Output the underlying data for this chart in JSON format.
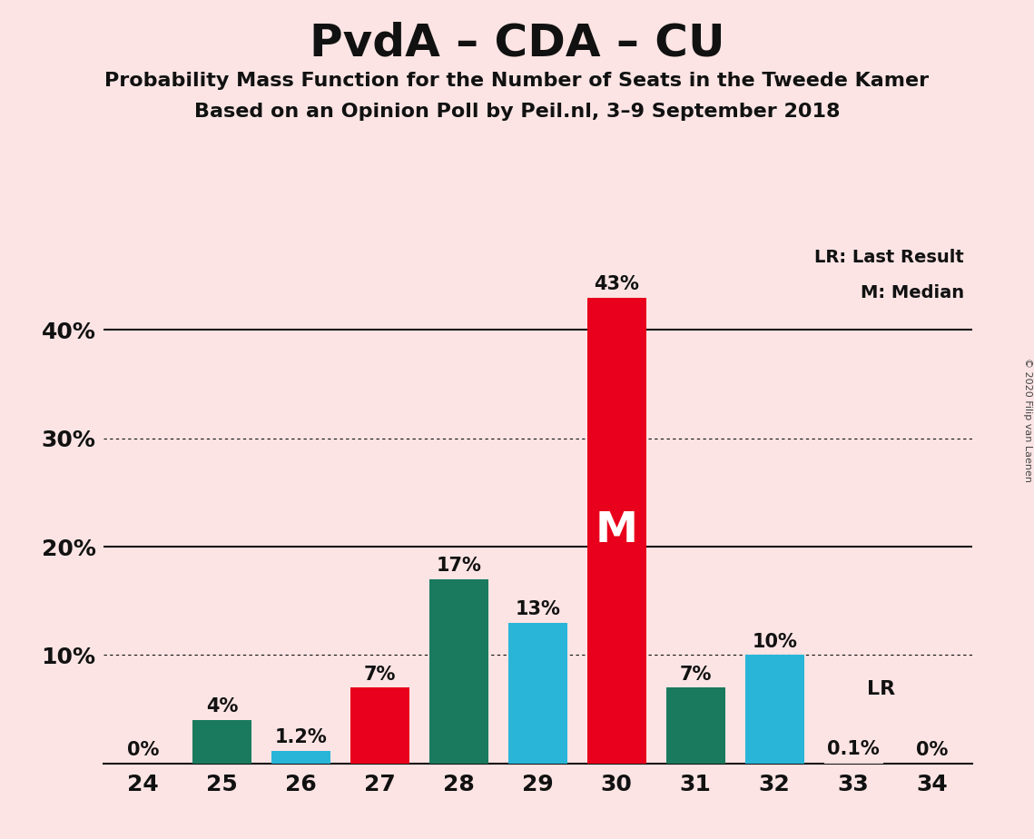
{
  "title": "PvdA – CDA – CU",
  "subtitle1": "Probability Mass Function for the Number of Seats in the Tweede Kamer",
  "subtitle2": "Based on an Opinion Poll by Peil.nl, 3–9 September 2018",
  "copyright": "© 2020 Filip van Laenen",
  "background_color": "#fce4e4",
  "seats": [
    24,
    25,
    26,
    27,
    28,
    29,
    30,
    31,
    32,
    33,
    34
  ],
  "values": [
    0.0,
    4.0,
    1.2,
    7.0,
    17.0,
    13.0,
    43.0,
    7.0,
    10.0,
    0.1,
    0.0
  ],
  "labels": [
    "0%",
    "4%",
    "1.2%",
    "7%",
    "17%",
    "13%",
    "43%",
    "7%",
    "10%",
    "0.1%",
    "0%"
  ],
  "bar_colors": [
    "#fce4e4",
    "#1a7a5e",
    "#29b5d8",
    "#e8001c",
    "#1a7a5e",
    "#29b5d8",
    "#e8001c",
    "#1a7a5e",
    "#29b5d8",
    "#fce4e4",
    "#fce4e4"
  ],
  "median_seat": 30,
  "lr_seat": 33,
  "ylim": [
    0,
    48
  ],
  "yticks": [
    10,
    20,
    30,
    40
  ],
  "solid_yticks": [
    20,
    40
  ],
  "dotted_yticks": [
    10,
    30
  ],
  "legend_lr": "LR: Last Result",
  "legend_m": "M: Median",
  "title_fontsize": 36,
  "subtitle_fontsize": 16,
  "axis_label_fontsize": 18,
  "bar_label_fontsize": 15
}
